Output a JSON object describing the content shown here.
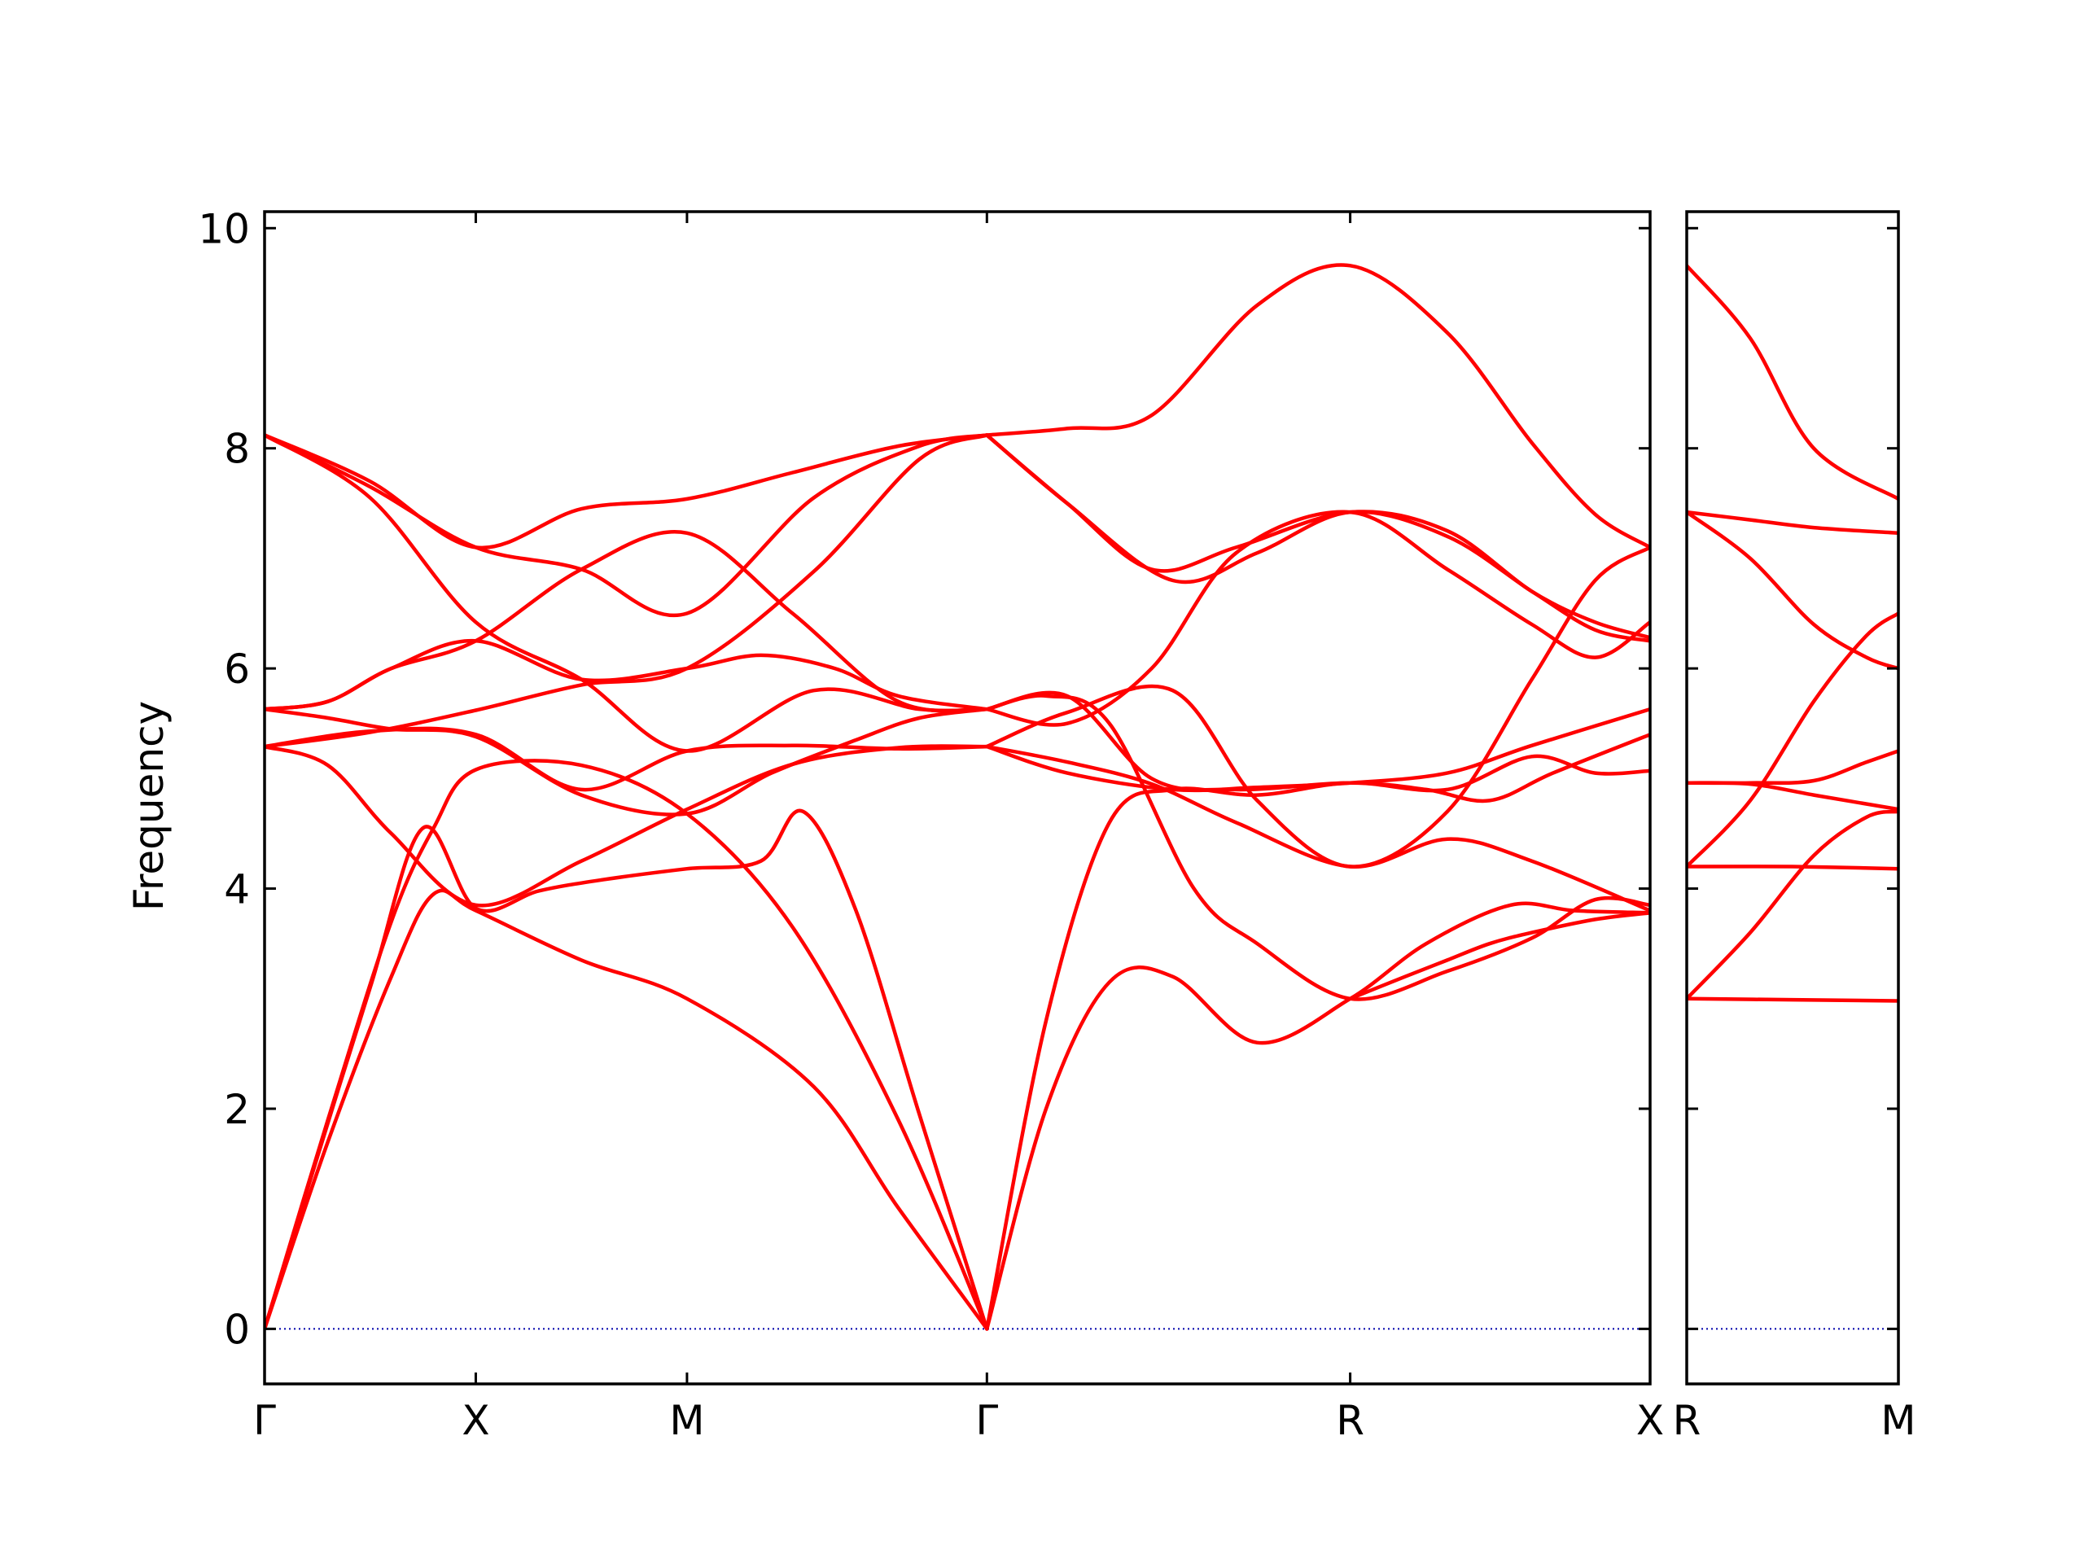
{
  "chart_data": {
    "type": "line",
    "ylabel": "Frequency",
    "ylim": [
      -0.5,
      10.15
    ],
    "yticks": [
      0,
      2,
      4,
      6,
      8,
      10
    ],
    "grid": false,
    "line_color": "#ff0000",
    "zero_line_color": "#0000aa",
    "panels": [
      {
        "xlim": [
          0,
          6.56
        ],
        "xticks": [
          {
            "pos": 0,
            "label": "Γ"
          },
          {
            "pos": 1,
            "label": "X"
          },
          {
            "pos": 2,
            "label": "M"
          },
          {
            "pos": 3.42,
            "label": "Γ"
          },
          {
            "pos": 5.14,
            "label": "R"
          },
          {
            "pos": 6.56,
            "label": "X"
          }
        ],
        "series": [
          {
            "x": [
              0,
              0.3,
              0.6,
              0.8,
              1,
              1.5,
              2,
              2.6,
              3.0,
              3.42
            ],
            "y": [
              0,
              1.7,
              3.2,
              3.95,
              3.8,
              3.35,
              3.0,
              2.2,
              1.1,
              0
            ]
          },
          {
            "x": [
              0,
              0.3,
              0.6,
              0.8,
              1,
              1.5,
              2,
              2.5,
              3.0,
              3.42
            ],
            "y": [
              0,
              1.9,
              3.7,
              4.55,
              5.08,
              5.12,
              4.68,
              3.65,
              1.9,
              0
            ]
          },
          {
            "x": [
              0,
              0.2,
              0.5,
              0.75,
              1,
              1.3,
              1.6,
              2,
              2.35,
              2.55,
              2.8,
              3.1,
              3.42
            ],
            "y": [
              0,
              1.25,
              3.1,
              4.55,
              3.82,
              3.98,
              4.08,
              4.18,
              4.25,
              4.7,
              3.8,
              1.95,
              0
            ]
          },
          {
            "x": [
              0,
              0.3,
              0.6,
              1,
              1.5,
              2,
              2.5,
              3.0,
              3.42
            ],
            "y": [
              5.29,
              5.12,
              4.5,
              3.85,
              4.25,
              4.72,
              5.13,
              5.28,
              5.29
            ]
          },
          {
            "x": [
              0,
              0.5,
              1,
              1.5,
              2,
              2.5,
              3.0,
              3.42
            ],
            "y": [
              5.29,
              5.43,
              5.4,
              4.9,
              5.25,
              5.3,
              5.27,
              5.29
            ]
          },
          {
            "x": [
              0,
              0.3,
              0.6,
              1,
              1.5,
              2,
              2.4,
              2.8,
              3.1,
              3.42
            ],
            "y": [
              5.63,
              5.55,
              5.45,
              5.38,
              4.85,
              4.68,
              5.05,
              5.35,
              5.55,
              5.63
            ]
          },
          {
            "x": [
              0,
              0.3,
              0.6,
              1,
              1.5,
              2,
              2.35,
              2.7,
              3.0,
              3.42
            ],
            "y": [
              5.63,
              5.7,
              6.0,
              6.25,
              5.9,
              6.0,
              6.12,
              6.0,
              5.75,
              5.63
            ]
          },
          {
            "x": [
              0,
              0.5,
              1,
              1.5,
              2,
              2.6,
              3.1,
              3.42
            ],
            "y": [
              5.29,
              5.42,
              5.62,
              5.85,
              6.0,
              6.88,
              7.9,
              8.12
            ]
          },
          {
            "x": [
              0,
              0.5,
              1,
              1.5,
              2,
              2.6,
              3.1,
              3.42
            ],
            "y": [
              8.12,
              7.55,
              6.42,
              5.9,
              5.25,
              5.8,
              5.63,
              5.63
            ]
          },
          {
            "x": [
              0,
              0.5,
              1,
              1.5,
              2,
              2.6,
              3.1,
              3.42
            ],
            "y": [
              8.12,
              7.65,
              7.1,
              6.9,
              6.5,
              7.55,
              8.02,
              8.12
            ]
          },
          {
            "x": [
              0,
              0.5,
              1,
              1.5,
              2,
              2.5,
              3.0,
              3.42
            ],
            "y": [
              8.12,
              7.7,
              7.1,
              7.45,
              7.54,
              7.78,
              8.02,
              8.12
            ]
          },
          {
            "x": [
              0,
              0.3,
              0.6,
              1,
              1.5,
              2,
              2.5,
              3.0,
              3.42
            ],
            "y": [
              5.63,
              5.7,
              6.0,
              6.25,
              6.9,
              7.23,
              6.5,
              5.7,
              5.63
            ]
          },
          {
            "x": [
              3.42,
              3.7,
              4.0,
              4.3,
              4.7,
              5.14,
              5.5,
              5.9,
              6.2,
              6.56
            ],
            "y": [
              0,
              2.0,
              3.15,
              3.2,
              2.6,
              3.0,
              3.5,
              3.85,
              3.8,
              3.78
            ]
          },
          {
            "x": [
              3.42,
              3.7,
              4.0,
              4.3,
              4.7,
              5.14,
              5.6,
              6.0,
              6.3,
              6.56
            ],
            "y": [
              0,
              2.8,
              4.6,
              4.9,
              4.85,
              4.96,
              4.9,
              5.2,
              5.05,
              5.07
            ]
          },
          {
            "x": [
              3.42,
              3.8,
              4.2,
              4.6,
              5.14,
              5.6,
              6.0,
              6.56
            ],
            "y": [
              5.29,
              5.15,
              4.95,
              4.6,
              4.2,
              4.45,
              4.25,
              3.8
            ]
          },
          {
            "x": [
              3.42,
              3.8,
              4.2,
              4.6,
              5.14,
              5.5,
              5.8,
              6.1,
              6.56
            ],
            "y": [
              5.63,
              5.75,
              5.0,
              4.9,
              4.96,
              4.9,
              4.8,
              5.05,
              5.4
            ]
          },
          {
            "x": [
              3.42,
              3.8,
              4.3,
              4.7,
              5.14,
              5.6,
              6.0,
              6.56
            ],
            "y": [
              5.29,
              5.05,
              4.9,
              4.92,
              4.96,
              5.05,
              5.3,
              5.63
            ]
          },
          {
            "x": [
              3.42,
              3.7,
              4.0,
              4.4,
              4.7,
              5.14,
              5.6,
              6.0,
              6.3,
              6.56
            ],
            "y": [
              5.63,
              5.75,
              5.5,
              4.0,
              3.5,
              3.0,
              3.25,
              3.55,
              3.9,
              3.85
            ]
          },
          {
            "x": [
              3.42,
              3.8,
              4.2,
              4.6,
              5.14,
              5.6,
              6.0,
              6.3,
              6.56
            ],
            "y": [
              5.63,
              5.5,
              6.0,
              7.05,
              7.42,
              6.9,
              6.4,
              6.1,
              6.42
            ]
          },
          {
            "x": [
              3.42,
              3.8,
              4.3,
              4.7,
              5.14,
              5.6,
              6.0,
              6.3,
              6.56
            ],
            "y": [
              8.12,
              7.5,
              6.8,
              7.05,
              7.42,
              7.2,
              6.7,
              6.35,
              6.25
            ]
          },
          {
            "x": [
              3.42,
              3.8,
              4.2,
              4.6,
              5.14,
              5.6,
              6.0,
              6.3,
              6.56
            ],
            "y": [
              8.12,
              7.5,
              6.9,
              7.1,
              7.42,
              7.25,
              6.7,
              6.42,
              6.28
            ]
          },
          {
            "x": [
              3.42,
              3.8,
              4.2,
              4.7,
              5.14,
              5.6,
              6.0,
              6.3,
              6.56
            ],
            "y": [
              8.12,
              8.18,
              8.3,
              9.3,
              9.66,
              9.05,
              8.05,
              7.4,
              7.1
            ]
          },
          {
            "x": [
              3.42,
              3.8,
              4.3,
              4.7,
              5.14,
              5.6,
              6.0,
              6.3,
              6.56
            ],
            "y": [
              5.29,
              5.6,
              5.8,
              4.8,
              4.2,
              4.7,
              5.9,
              6.8,
              7.1
            ]
          },
          {
            "x": [
              5.14,
              5.4,
              5.6,
              5.8,
              6.0,
              6.3,
              6.56
            ],
            "y": [
              3.0,
              3.2,
              3.35,
              3.5,
              3.6,
              3.72,
              3.78
            ]
          }
        ]
      },
      {
        "xlim": [
          0,
          1
        ],
        "xticks": [
          {
            "pos": 0,
            "label": "R"
          },
          {
            "pos": 1,
            "label": "M"
          }
        ],
        "series": [
          {
            "x": [
              0,
              0.3,
              0.6,
              1
            ],
            "y": [
              9.66,
              9.0,
              8.0,
              7.54
            ]
          },
          {
            "x": [
              0,
              0.3,
              0.6,
              1
            ],
            "y": [
              7.42,
              7.35,
              7.28,
              7.23
            ]
          },
          {
            "x": [
              0,
              0.3,
              0.6,
              0.85,
              1
            ],
            "y": [
              7.42,
              7.0,
              6.4,
              6.1,
              6.0
            ]
          },
          {
            "x": [
              0,
              0.3,
              0.6,
              0.85,
              1
            ],
            "y": [
              4.2,
              4.8,
              5.7,
              6.3,
              6.5
            ]
          },
          {
            "x": [
              0,
              0.3,
              0.6,
              0.85,
              1
            ],
            "y": [
              4.96,
              4.96,
              4.98,
              5.15,
              5.25
            ]
          },
          {
            "x": [
              0,
              0.3,
              0.6,
              1
            ],
            "y": [
              4.96,
              4.95,
              4.85,
              4.72
            ]
          },
          {
            "x": [
              0,
              0.5,
              1
            ],
            "y": [
              4.2,
              4.2,
              4.18
            ]
          },
          {
            "x": [
              0,
              0.3,
              0.6,
              0.85,
              1
            ],
            "y": [
              3.0,
              3.6,
              4.3,
              4.65,
              4.7
            ]
          },
          {
            "x": [
              0,
              0.5,
              1
            ],
            "y": [
              3.0,
              2.99,
              2.98
            ]
          }
        ]
      }
    ]
  }
}
